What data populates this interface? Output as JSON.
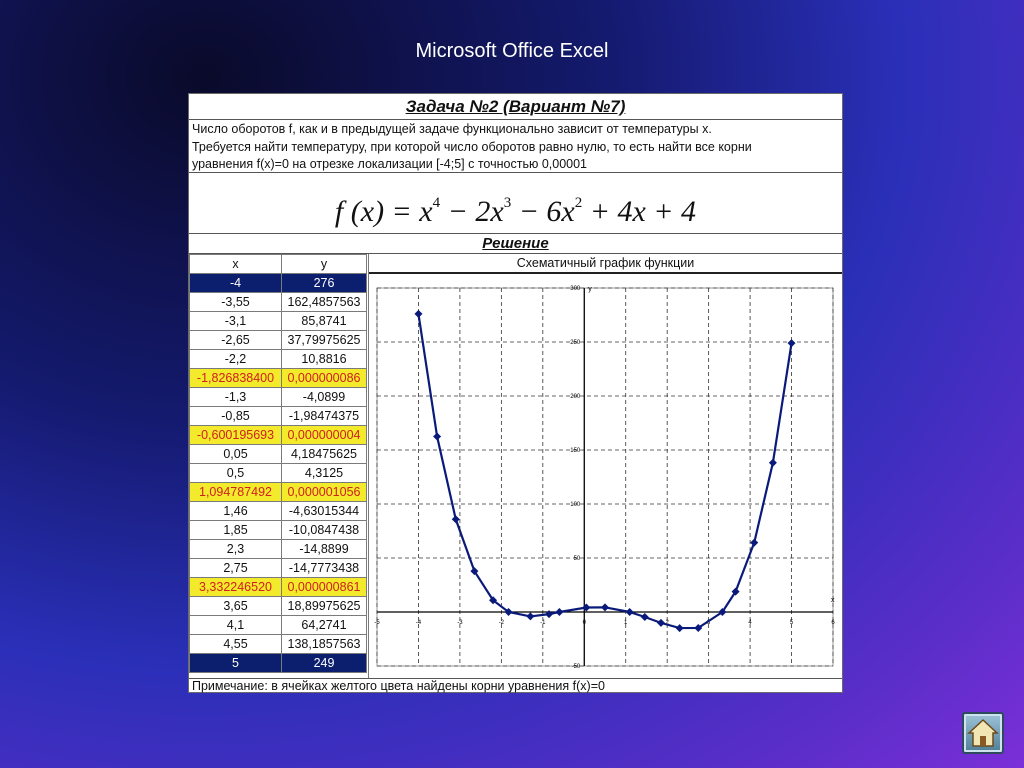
{
  "slide": {
    "title": "Microsoft Office Excel"
  },
  "sheet": {
    "task_title": "Задача №2 (Вариант №7)",
    "task_lines": [
      "Число оборотов f, как и в предыдущей задаче функционально зависит от температуры x.",
      "Требуется найти температуру, при которой число оборотов равно нулю, то есть найти все корни",
      "уравнения f(x)=0 на отрезке локализации [-4;5] с точностью 0,00001"
    ],
    "formula": {
      "lhs": "f (x) =",
      "t1": "x",
      "e1": "4",
      "t2": "− 2x",
      "e2": "3",
      "t3": "− 6x",
      "e3": "2",
      "t4": "+ 4x + 4"
    },
    "solution_title": "Решение",
    "table": {
      "headers": [
        "x",
        "y"
      ],
      "rows": [
        {
          "x": "-4",
          "y": "276",
          "style": "sel"
        },
        {
          "x": "-3,55",
          "y": "162,4857563",
          "style": ""
        },
        {
          "x": "-3,1",
          "y": "85,8741",
          "style": ""
        },
        {
          "x": "-2,65",
          "y": "37,79975625",
          "style": ""
        },
        {
          "x": "-2,2",
          "y": "10,8816",
          "style": ""
        },
        {
          "x": "-1,826838400",
          "y": "0,000000086",
          "style": "root"
        },
        {
          "x": "-1,3",
          "y": "-4,0899",
          "style": ""
        },
        {
          "x": "-0,85",
          "y": "-1,98474375",
          "style": ""
        },
        {
          "x": "-0,600195693",
          "y": "0,000000004",
          "style": "root"
        },
        {
          "x": "0,05",
          "y": "4,18475625",
          "style": ""
        },
        {
          "x": "0,5",
          "y": "4,3125",
          "style": ""
        },
        {
          "x": "1,094787492",
          "y": "0,000001056",
          "style": "root"
        },
        {
          "x": "1,46",
          "y": "-4,63015344",
          "style": ""
        },
        {
          "x": "1,85",
          "y": "-10,0847438",
          "style": ""
        },
        {
          "x": "2,3",
          "y": "-14,8899",
          "style": ""
        },
        {
          "x": "2,75",
          "y": "-14,7773438",
          "style": ""
        },
        {
          "x": "3,332246520",
          "y": "0,000000861",
          "style": "root"
        },
        {
          "x": "3,65",
          "y": "18,89975625",
          "style": ""
        },
        {
          "x": "4,1",
          "y": "64,2741",
          "style": ""
        },
        {
          "x": "4,55",
          "y": "138,1857563",
          "style": ""
        },
        {
          "x": "5",
          "y": "249",
          "style": "sel"
        }
      ]
    },
    "note": "Примечание: в ячейках желтого цвета найдены корни уравнения f(x)=0"
  },
  "chart_data": {
    "type": "line",
    "title": "Схематичный график функции",
    "xlabel": "x",
    "ylabel": "y",
    "xlim": [
      -5,
      6
    ],
    "ylim": [
      -50,
      300
    ],
    "x_ticks": [
      -5,
      -4,
      -3,
      -2,
      -1,
      0,
      1,
      2,
      3,
      4,
      5,
      6
    ],
    "y_ticks": [
      -50,
      0,
      50,
      100,
      150,
      200,
      250,
      300
    ],
    "grid": true,
    "series": [
      {
        "color": "#0a1a7a",
        "x": [
          -4,
          -3.55,
          -3.1,
          -2.65,
          -2.2,
          -1.8268,
          -1.3,
          -0.85,
          -0.6002,
          0.05,
          0.5,
          1.0948,
          1.46,
          1.85,
          2.3,
          2.75,
          3.3322,
          3.65,
          4.1,
          4.55,
          5
        ],
        "y": [
          276,
          162.49,
          85.87,
          37.8,
          10.88,
          0,
          -4.09,
          -1.98,
          0,
          4.18,
          4.31,
          0,
          -4.63,
          -10.08,
          -14.89,
          -14.78,
          0,
          18.9,
          64.27,
          138.19,
          249
        ]
      }
    ]
  },
  "icons": {
    "home": "home-icon"
  },
  "colors": {
    "selected_cell": "#0c1f6e",
    "root_cell": "#f4ea2c",
    "root_text": "#d02020"
  }
}
